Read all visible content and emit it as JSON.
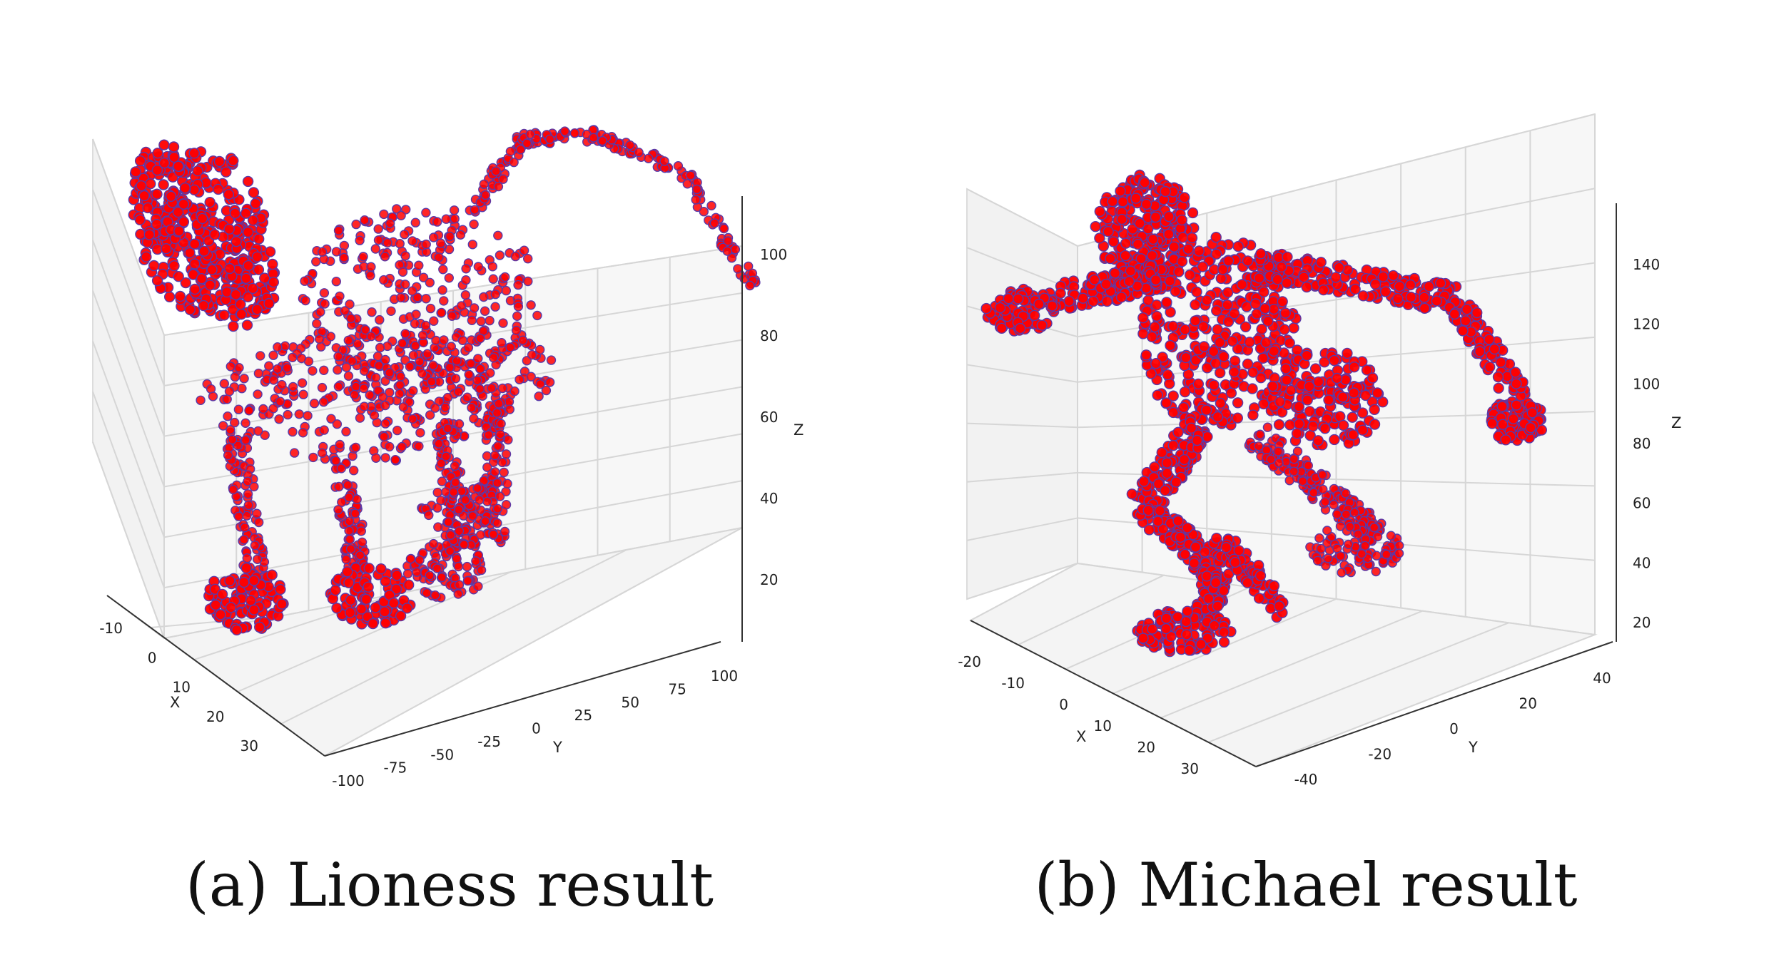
{
  "colors": {
    "point_fill": "#ff0000",
    "point_edge": "#5a3aa8"
  },
  "chart_data": [
    {
      "type": "scatter",
      "projection": "3d",
      "shape": "lioness",
      "caption": "(a) Lioness result",
      "xlabel": "X",
      "ylabel": "Y",
      "zlabel": "Z",
      "xlim": [
        -18,
        38
      ],
      "ylim": [
        -105,
        105
      ],
      "zlim": [
        8,
        112
      ],
      "xticks": [
        "-10",
        "0",
        "10",
        "20",
        "30"
      ],
      "yticks": [
        "-100",
        "-75",
        "-50",
        "-25",
        "0",
        "25",
        "50",
        "75",
        "100"
      ],
      "zticks": [
        "20",
        "40",
        "60",
        "80",
        "100"
      ],
      "grid": true
    },
    {
      "type": "scatter",
      "projection": "3d",
      "shape": "michael",
      "caption": "(b) Michael result",
      "xlabel": "X",
      "ylabel": "Y",
      "zlabel": "Z",
      "xlim": [
        -28,
        36
      ],
      "ylim": [
        -45,
        45
      ],
      "zlim": [
        15,
        158
      ],
      "xticks": [
        "-20",
        "-10",
        "0",
        "10",
        "20",
        "30"
      ],
      "yticks": [
        "-40",
        "-20",
        "0",
        "20",
        "40"
      ],
      "zticks": [
        "20",
        "40",
        "60",
        "80",
        "100",
        "120",
        "140"
      ],
      "grid": true
    }
  ]
}
